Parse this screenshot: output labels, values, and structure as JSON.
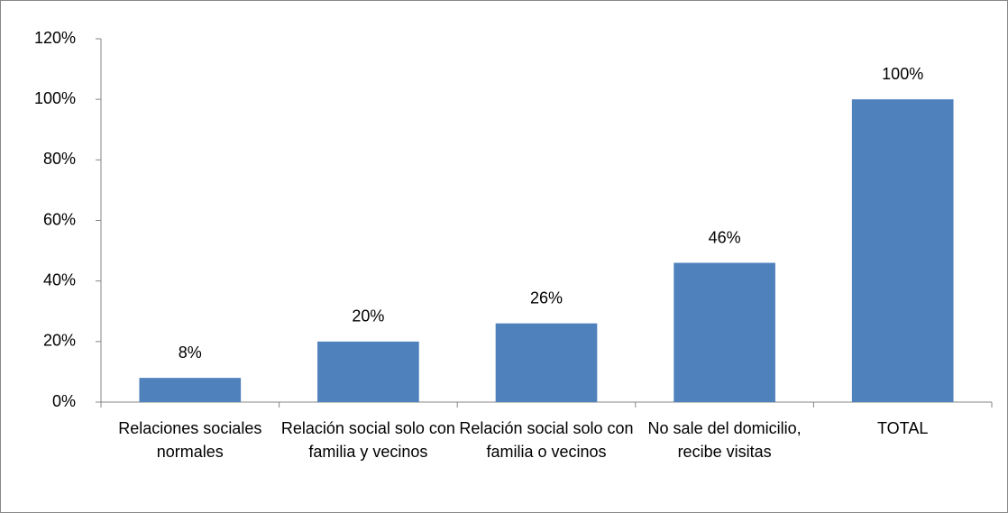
{
  "chart_data": {
    "type": "bar",
    "categories": [
      "Relaciones sociales normales",
      "Relación social solo con familia y vecinos",
      "Relación social solo con familia o vecinos",
      "No sale del domicilio, recibe visitas",
      "TOTAL"
    ],
    "values": [
      8,
      20,
      26,
      46,
      100
    ],
    "value_labels": [
      "8%",
      "20%",
      "26%",
      "46%",
      "100%"
    ],
    "color": "#4f81bd",
    "ylim": [
      0,
      120
    ],
    "yticks": [
      {
        "value": 0,
        "label": "0%"
      },
      {
        "value": 20,
        "label": "20%"
      },
      {
        "value": 40,
        "label": "40%"
      },
      {
        "value": 60,
        "label": "60%"
      },
      {
        "value": 80,
        "label": "80%"
      },
      {
        "value": 100,
        "label": "100%"
      },
      {
        "value": 120,
        "label": "120%"
      }
    ],
    "grid": false
  }
}
